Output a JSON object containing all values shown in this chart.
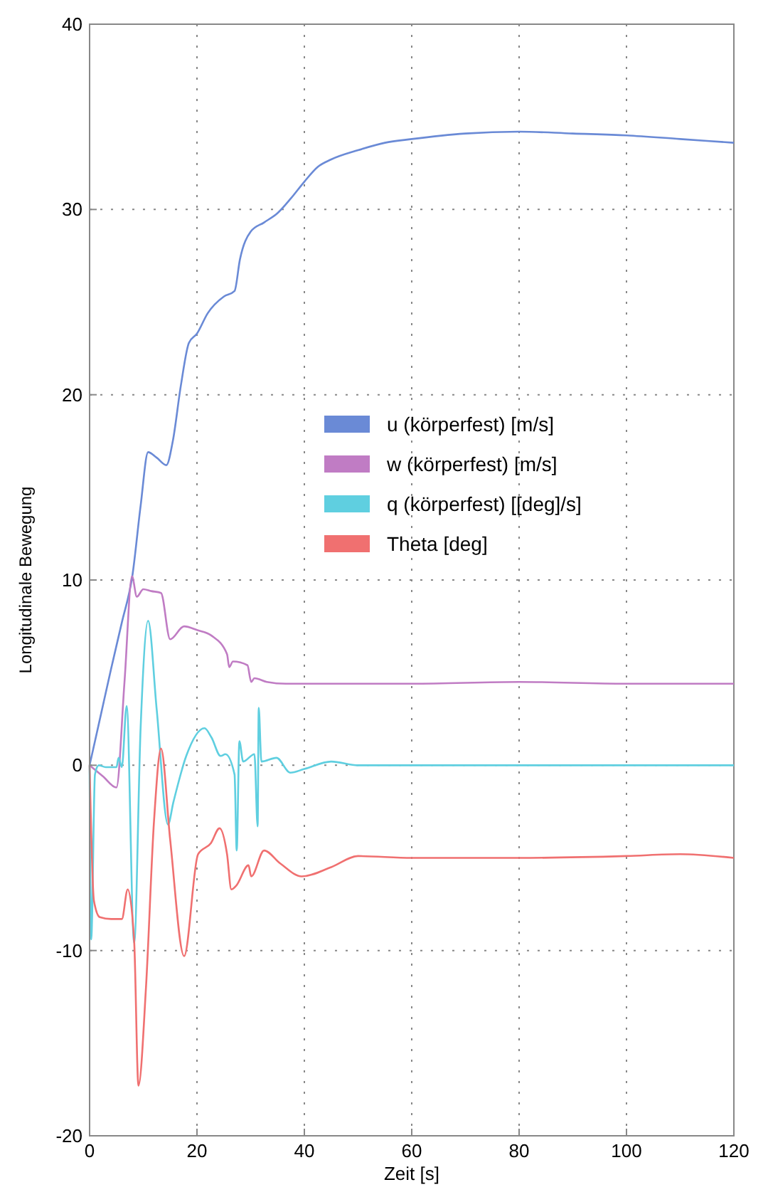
{
  "chart_data": {
    "type": "line",
    "xlabel": "Zeit [s]",
    "ylabel": "Longitudinale Bewegung",
    "xlim": [
      0,
      120
    ],
    "ylim": [
      -20,
      40
    ],
    "xticks": [
      0,
      20,
      40,
      60,
      80,
      100,
      120
    ],
    "yticks": [
      -20,
      -10,
      0,
      10,
      20,
      30,
      40
    ],
    "grid": true,
    "legend": "right",
    "line_style": "solid",
    "marker": "none",
    "series": [
      {
        "name": "u (körperfest) [m/s]",
        "color": "#6a8ad6",
        "x": [
          0,
          2,
          4,
          6,
          8,
          9.5,
          10.9,
          12.5,
          14.3,
          15.5,
          17,
          18.5,
          20,
          22,
          25,
          27,
          28,
          30,
          32.5,
          35,
          37.5,
          40,
          42.5,
          45,
          50,
          55,
          60,
          70,
          80,
          90,
          100,
          110,
          120
        ],
        "values": [
          0,
          2.6,
          5.2,
          7.7,
          10.3,
          14,
          16.9,
          16.6,
          16.2,
          17.5,
          20.5,
          22.8,
          23.3,
          24.4,
          25.3,
          25.6,
          27.3,
          28.8,
          29.3,
          29.8,
          30.6,
          31.5,
          32.3,
          32.7,
          33.2,
          33.6,
          33.8,
          34.1,
          34.2,
          34.1,
          34,
          33.8,
          33.6
        ]
      },
      {
        "name": "w (körperfest) [m/s]",
        "color": "#c07cc4",
        "x": [
          0,
          2.5,
          5,
          6.5,
          7.9,
          8.8,
          10,
          11.5,
          13.3,
          15,
          17.6,
          20,
          22.7,
          25.6,
          26,
          26.7,
          29.4,
          30.1,
          30.7,
          33,
          36.6,
          45,
          60,
          80,
          100,
          120
        ],
        "values": [
          0,
          -0.6,
          -1.2,
          4.5,
          10.2,
          9.1,
          9.5,
          9.4,
          9.3,
          6.8,
          7.5,
          7.3,
          7,
          6,
          5.3,
          5.6,
          5.4,
          4.5,
          4.7,
          4.5,
          4.4,
          4.4,
          4.4,
          4.5,
          4.4,
          4.4
        ]
      },
      {
        "name": "q (körperfest) [[deg]/s]",
        "color": "#5fcfe0",
        "x": [
          0,
          0.3,
          1,
          1.7,
          3,
          5,
          5.4,
          6,
          6.9,
          8.3,
          9.5,
          10.9,
          12.5,
          14.6,
          15.6,
          18,
          21.4,
          22.7,
          24.4,
          25.3,
          27,
          27.4,
          27.9,
          28.6,
          30.7,
          31.3,
          31.5,
          32,
          34.8,
          37.4,
          40,
          45,
          50,
          60,
          80,
          100,
          120
        ],
        "values": [
          0,
          -9.4,
          -0.5,
          0,
          -0.1,
          -0.1,
          0.4,
          -0.1,
          3.2,
          -9.6,
          2,
          7.8,
          3,
          -3.2,
          -2,
          0.5,
          2,
          1.5,
          0.5,
          0.6,
          -0.5,
          -4.6,
          1.3,
          0.2,
          0.6,
          -3.3,
          3.1,
          0.2,
          0.4,
          -0.4,
          -0.2,
          0.2,
          0,
          0,
          0,
          0,
          0
        ]
      },
      {
        "name": "Theta [deg]",
        "color": "#f07070",
        "x": [
          0,
          0.8,
          1.9,
          4,
          6,
          7.1,
          8.3,
          9.1,
          10.5,
          12,
          13.3,
          15,
          17.6,
          20.2,
          22.6,
          24.2,
          25.6,
          26.4,
          27.3,
          29.6,
          30.1,
          32.5,
          35.5,
          39.5,
          45,
          50,
          60,
          80,
          100,
          110,
          120
        ],
        "values": [
          0,
          -7.3,
          -8.2,
          -8.3,
          -8.3,
          -6.7,
          -9.5,
          -17.3,
          -12,
          -3,
          0.9,
          -4,
          -10.3,
          -4.8,
          -4.2,
          -3.4,
          -4.8,
          -6.7,
          -6.5,
          -5.4,
          -6,
          -4.6,
          -5.3,
          -6,
          -5.5,
          -4.9,
          -5,
          -5,
          -4.9,
          -4.8,
          -5
        ]
      }
    ]
  }
}
